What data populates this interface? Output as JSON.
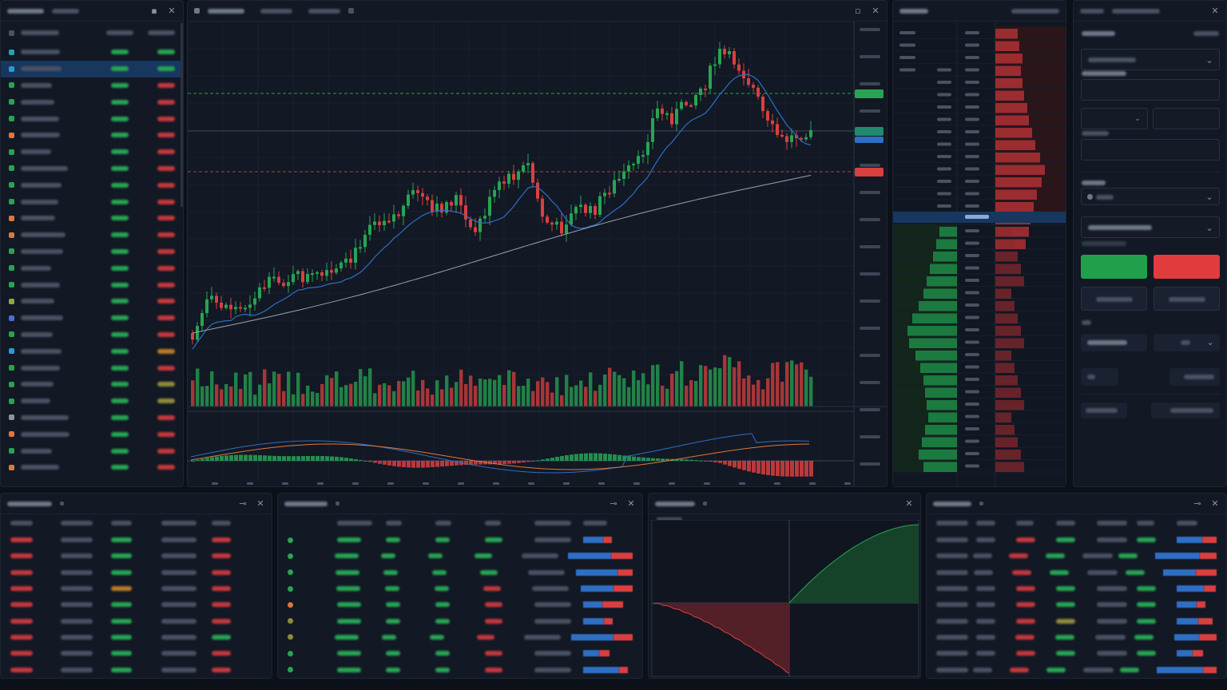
{
  "watchlist": {
    "selected_index": 1,
    "row_colors": [
      "#27a1b5",
      "#2a9bd6",
      "#27a453",
      "#27a453",
      "#27a453",
      "#e0773a",
      "#27a453",
      "#27a453",
      "#27a453",
      "#27a453",
      "#e0773a",
      "#e0773a",
      "#27a453",
      "#27a453",
      "#27a453",
      "#8fa83c",
      "#4a6fd0",
      "#27a453",
      "#2a9bd6",
      "#27a453",
      "#27a453",
      "#27a453",
      "#8a93a3",
      "#e0773a",
      "#27a453",
      "#e0773a"
    ],
    "change_tones": [
      "g",
      "g",
      "r",
      "r",
      "r",
      "r",
      "r",
      "r",
      "r",
      "r",
      "r",
      "r",
      "r",
      "r",
      "r",
      "r",
      "r",
      "r",
      "o",
      "r",
      "y",
      "y",
      "r",
      "r",
      "r",
      "r"
    ]
  },
  "chart": {
    "price_labels": {
      "green": "",
      "blue": "",
      "red": ""
    }
  },
  "order_entry": {
    "buy_label": "",
    "sell_label": ""
  },
  "colors": {
    "up": "#27a453",
    "down": "#d8403f",
    "accent": "#2e6fc4",
    "background": "#0c1018",
    "panel": "#121824"
  },
  "icons": [
    "close-icon",
    "minimize-icon",
    "settings-icon",
    "chevron-down-icon",
    "pin-icon"
  ],
  "chart_data": [
    {
      "type": "line",
      "series": [],
      "ohlc_count": 130,
      "moving_averages": 2
    },
    {
      "type": "bar",
      "series": []
    },
    {
      "type": "area",
      "series": []
    }
  ]
}
